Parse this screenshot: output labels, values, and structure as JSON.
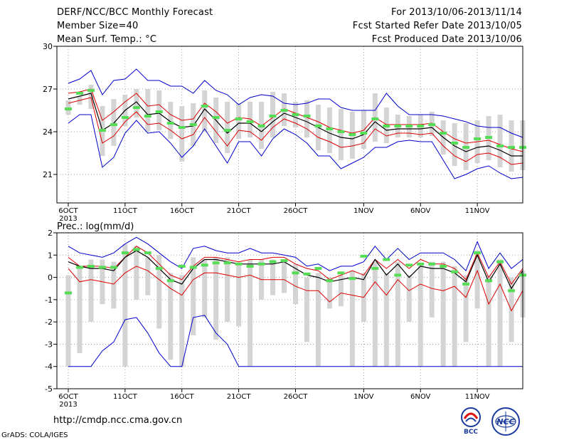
{
  "header": {
    "title": "DERF/NCC/BCC Monthly Forecast",
    "member_size": "Member Size=40",
    "variable": "Mean Surf. Temp.: °C",
    "period": "For 2013/10/06-2013/11/14",
    "start_refer": "Fcst Started Refer Date 2013/10/05",
    "produced": "Fcst Produced Date 2013/10/06"
  },
  "footer": {
    "url": "http://cmdp.ncc.cma.gov.cn",
    "grads": "GrADS: COLA/IGES",
    "logo_bcc": "BCC",
    "logo_ncc": "NCC"
  },
  "colors": {
    "envelope": "#0000cc",
    "percentile": "#dd0000",
    "mean": "#000000",
    "box": "#d4d4d4",
    "marker": "#55dd55"
  },
  "chart_data": [
    {
      "type": "line",
      "title": "",
      "ylabel": "",
      "ylim": [
        19,
        30
      ],
      "yticks": [
        21,
        24,
        27,
        30
      ],
      "grid": true,
      "x_tick_labels": [
        "6OCT",
        "11OCT",
        "16OCT",
        "21OCT",
        "26OCT",
        "1NOV",
        "6NOV",
        "11NOV"
      ],
      "x_tick_days": [
        1,
        6,
        11,
        16,
        21,
        27,
        32,
        37
      ],
      "x_year_label": "2013",
      "x_range_days": [
        0,
        41
      ],
      "series": [
        {
          "role": "max",
          "values": [
            27.4,
            27.7,
            28.3,
            26.6,
            27.6,
            27.7,
            28.4,
            27.6,
            27.6,
            27.2,
            27.2,
            26.7,
            27.6,
            26.9,
            26.6,
            25.9,
            26.4,
            26.6,
            26.5,
            26.0,
            25.9,
            26.0,
            26.3,
            26.3,
            25.7,
            25.5,
            25.5,
            25.5,
            26.7,
            25.8,
            25.2,
            25.2,
            25.2,
            25.1,
            24.9,
            24.7,
            24.4,
            24.3,
            24.3,
            23.9,
            23.6
          ]
        },
        {
          "role": "p_high",
          "values": [
            26.7,
            26.8,
            27.0,
            24.8,
            25.4,
            26.1,
            26.7,
            25.8,
            25.9,
            25.2,
            24.8,
            24.9,
            26.0,
            25.4,
            24.6,
            25.0,
            24.9,
            24.4,
            25.0,
            25.6,
            25.3,
            25.0,
            24.7,
            24.3,
            24.1,
            23.9,
            24.1,
            25.0,
            24.5,
            24.5,
            24.5,
            24.5,
            24.6,
            24.0,
            23.5,
            23.2,
            23.3,
            23.4,
            23.1,
            22.8,
            22.6
          ]
        },
        {
          "role": "mean",
          "values": [
            26.3,
            26.5,
            26.7,
            24.1,
            24.6,
            25.5,
            26.1,
            25.2,
            25.3,
            24.7,
            24.3,
            24.4,
            25.6,
            24.8,
            23.9,
            24.6,
            24.6,
            24.0,
            24.7,
            25.3,
            25.0,
            24.7,
            24.3,
            23.9,
            23.6,
            23.5,
            23.8,
            24.7,
            24.1,
            24.2,
            24.2,
            24.2,
            24.3,
            23.6,
            23.0,
            22.6,
            22.9,
            23.0,
            22.7,
            22.3,
            22.3
          ]
        },
        {
          "role": "p_low",
          "values": [
            26.0,
            26.2,
            26.4,
            23.2,
            23.7,
            24.7,
            25.4,
            24.5,
            24.6,
            24.1,
            23.5,
            23.8,
            25.0,
            24.0,
            23.0,
            24.1,
            24.0,
            23.4,
            24.3,
            24.9,
            24.6,
            24.2,
            23.6,
            23.3,
            22.9,
            23.0,
            23.2,
            24.2,
            23.7,
            23.9,
            23.9,
            23.8,
            23.9,
            23.0,
            22.3,
            21.9,
            22.4,
            22.5,
            22.2,
            21.7,
            21.8
          ]
        },
        {
          "role": "min",
          "values": [
            24.6,
            25.2,
            25.2,
            21.5,
            22.2,
            23.9,
            24.8,
            23.9,
            24.0,
            23.2,
            22.2,
            23.0,
            24.2,
            23.0,
            21.8,
            23.3,
            23.3,
            22.3,
            23.5,
            24.2,
            23.8,
            23.2,
            22.3,
            22.3,
            21.4,
            21.8,
            22.2,
            22.9,
            22.9,
            23.3,
            23.4,
            23.3,
            23.3,
            22.0,
            20.7,
            21.0,
            21.4,
            21.6,
            21.1,
            20.7,
            20.8
          ]
        },
        {
          "role": "marker",
          "values": [
            25.6,
            26.7,
            26.9,
            24.1,
            24.5,
            25.0,
            25.7,
            25.1,
            25.4,
            24.6,
            24.3,
            24.5,
            25.8,
            25.0,
            24.1,
            24.9,
            24.7,
            24.4,
            25.1,
            25.5,
            25.2,
            25.1,
            24.4,
            24.2,
            24.0,
            23.8,
            23.9,
            24.9,
            24.4,
            24.4,
            24.4,
            24.4,
            24.5,
            23.9,
            23.2,
            22.9,
            23.5,
            23.6,
            23.0,
            22.9,
            22.9
          ]
        },
        {
          "role": "box_top",
          "values": [
            26.2,
            26.5,
            27.3,
            25.8,
            26.3,
            26.6,
            27.0,
            27.0,
            26.9,
            26.1,
            25.8,
            26.0,
            26.9,
            26.4,
            26.1,
            26.0,
            26.1,
            26.1,
            26.8,
            26.7,
            26.1,
            26.2,
            25.9,
            25.7,
            25.6,
            25.4,
            25.5,
            26.7,
            25.7,
            25.2,
            25.1,
            25.2,
            25.4,
            24.8,
            24.6,
            24.6,
            24.8,
            25.1,
            25.2,
            24.8,
            24.8
          ]
        },
        {
          "role": "box_bottom",
          "values": [
            25.2,
            25.9,
            25.6,
            22.3,
            23.0,
            24.4,
            25.0,
            24.0,
            24.1,
            23.5,
            21.9,
            23.0,
            24.0,
            23.2,
            22.5,
            23.5,
            23.6,
            22.8,
            23.6,
            24.4,
            24.3,
            23.6,
            22.7,
            22.5,
            22.0,
            22.1,
            22.8,
            23.3,
            23.2,
            23.6,
            23.6,
            23.6,
            23.7,
            22.4,
            21.6,
            21.3,
            21.8,
            22.0,
            21.5,
            21.2,
            21.3
          ]
        }
      ]
    },
    {
      "type": "line",
      "title": "Prec.: log(mm/d)",
      "ylabel": "",
      "ylim": [
        -5,
        2
      ],
      "yticks": [
        -5,
        -4,
        -3,
        -2,
        -1,
        0,
        1,
        2
      ],
      "grid": true,
      "x_tick_labels": [
        "6OCT",
        "11OCT",
        "16OCT",
        "21OCT",
        "26OCT",
        "1NOV",
        "6NOV",
        "11NOV"
      ],
      "x_tick_days": [
        1,
        6,
        11,
        16,
        21,
        27,
        32,
        37
      ],
      "x_year_label": "2013",
      "x_range_days": [
        0,
        41
      ],
      "series": [
        {
          "role": "max",
          "values": [
            1.4,
            1.1,
            1.0,
            0.9,
            1.1,
            1.5,
            1.8,
            1.5,
            1.1,
            0.7,
            0.4,
            1.3,
            1.4,
            1.2,
            1.1,
            1.1,
            1.3,
            1.1,
            1.1,
            1.0,
            0.9,
            0.5,
            0.6,
            0.3,
            0.5,
            0.5,
            0.7,
            1.4,
            0.8,
            1.3,
            0.8,
            1.1,
            1.1,
            1.1,
            0.8,
            0.3,
            1.6,
            0.4,
            1.1,
            0.4,
            0.8
          ]
        },
        {
          "role": "p_high",
          "values": [
            0.9,
            0.5,
            0.5,
            0.5,
            0.4,
            0.9,
            1.4,
            1.1,
            0.6,
            0.1,
            -0.1,
            0.5,
            0.9,
            0.9,
            0.8,
            0.7,
            0.8,
            0.8,
            0.9,
            0.9,
            0.6,
            0.4,
            0.3,
            -0.1,
            0.1,
            0.3,
            0.1,
            0.8,
            0.4,
            0.8,
            0.4,
            0.8,
            0.6,
            0.6,
            0.4,
            -0.1,
            1.1,
            0.0,
            0.7,
            -0.3,
            0.4
          ]
        },
        {
          "role": "mean",
          "values": [
            0.7,
            0.5,
            0.4,
            0.4,
            0.3,
            0.9,
            1.2,
            0.9,
            0.4,
            -0.1,
            -0.3,
            0.4,
            0.8,
            0.8,
            0.7,
            0.6,
            0.6,
            0.6,
            0.6,
            0.7,
            0.4,
            0.1,
            0.0,
            -0.2,
            -0.1,
            0.0,
            -0.1,
            0.8,
            0.1,
            0.6,
            0.0,
            0.5,
            0.4,
            0.4,
            0.2,
            -0.2,
            1.0,
            -0.2,
            0.6,
            -0.5,
            0.3
          ]
        },
        {
          "role": "p_low",
          "values": [
            0.4,
            -0.2,
            -0.1,
            -0.2,
            -0.3,
            0.2,
            0.5,
            0.3,
            -0.1,
            -0.5,
            -0.8,
            -0.1,
            0.2,
            0.2,
            0.1,
            0.0,
            0.1,
            -0.1,
            -0.1,
            -0.1,
            -0.4,
            -0.6,
            -0.6,
            -1.1,
            -0.7,
            -0.8,
            -0.9,
            -0.2,
            -0.8,
            -0.1,
            -0.6,
            -0.3,
            -0.5,
            -0.6,
            -0.4,
            -0.9,
            0.3,
            -1.2,
            -0.3,
            -1.5,
            -0.6
          ]
        },
        {
          "role": "min",
          "values": [
            -4.0,
            -4.0,
            -4.0,
            -3.3,
            -2.9,
            -1.9,
            -1.8,
            -2.5,
            -3.4,
            -4.0,
            -4.0,
            -1.8,
            -1.7,
            -2.5,
            -3.0,
            -4.0,
            -4.0,
            -4.0,
            -4.0,
            -4.0,
            -4.0,
            -4.0,
            -4.0,
            -4.0,
            -4.0,
            -4.0,
            -4.0,
            -4.0,
            -4.0,
            -4.0,
            -4.0,
            -4.0,
            -4.0,
            -4.0,
            -4.0,
            -4.0,
            -4.0,
            -4.0,
            -4.0,
            -4.0,
            -4.0
          ]
        },
        {
          "role": "marker",
          "values": [
            -0.7,
            0.45,
            0.5,
            0.45,
            0.45,
            1.1,
            1.25,
            1.1,
            0.4,
            -0.15,
            0.5,
            0.45,
            0.55,
            0.65,
            0.65,
            0.6,
            0.5,
            0.6,
            0.7,
            0.75,
            0.2,
            0.15,
            0.4,
            -0.15,
            0.2,
            -0.05,
            0.95,
            0.4,
            0.8,
            0.1,
            0.55,
            0.6,
            0.6,
            0.5,
            0.25,
            -0.3,
            1.1,
            -0.15,
            0.7,
            -0.6,
            0.1
          ]
        },
        {
          "role": "box_top",
          "values": [
            0.1,
            0.5,
            0.8,
            0.8,
            0.7,
            1.5,
            1.4,
            0.9,
            1.0,
            0.2,
            0.1,
            0.9,
            0.8,
            0.9,
            0.9,
            0.6,
            0.8,
            0.8,
            0.8,
            0.8,
            0.6,
            0.0,
            0.2,
            0.0,
            0.1,
            0.3,
            0.2,
            0.7,
            0.2,
            0.7,
            0.1,
            0.6,
            0.7,
            0.7,
            0.5,
            0.1,
            1.2,
            0.1,
            0.8,
            0.0,
            0.3
          ]
        },
        {
          "role": "box_bottom",
          "values": [
            -4.0,
            -3.4,
            -2.0,
            -1.2,
            -1.4,
            -4.0,
            -1.0,
            -0.8,
            -2.3,
            -3.7,
            -4.0,
            -2.6,
            -1.8,
            -2.8,
            -2.0,
            -2.2,
            -4.0,
            -1.0,
            -0.8,
            -0.7,
            -1.2,
            -2.9,
            -4.0,
            -1.4,
            -1.3,
            -4.0,
            -2.0,
            -4.0,
            -4.0,
            -4.0,
            -2.0,
            -4.0,
            -1.8,
            -4.0,
            -4.0,
            -2.9,
            -1.4,
            -4.0,
            -4.0,
            -2.9,
            -1.8
          ]
        }
      ]
    }
  ]
}
